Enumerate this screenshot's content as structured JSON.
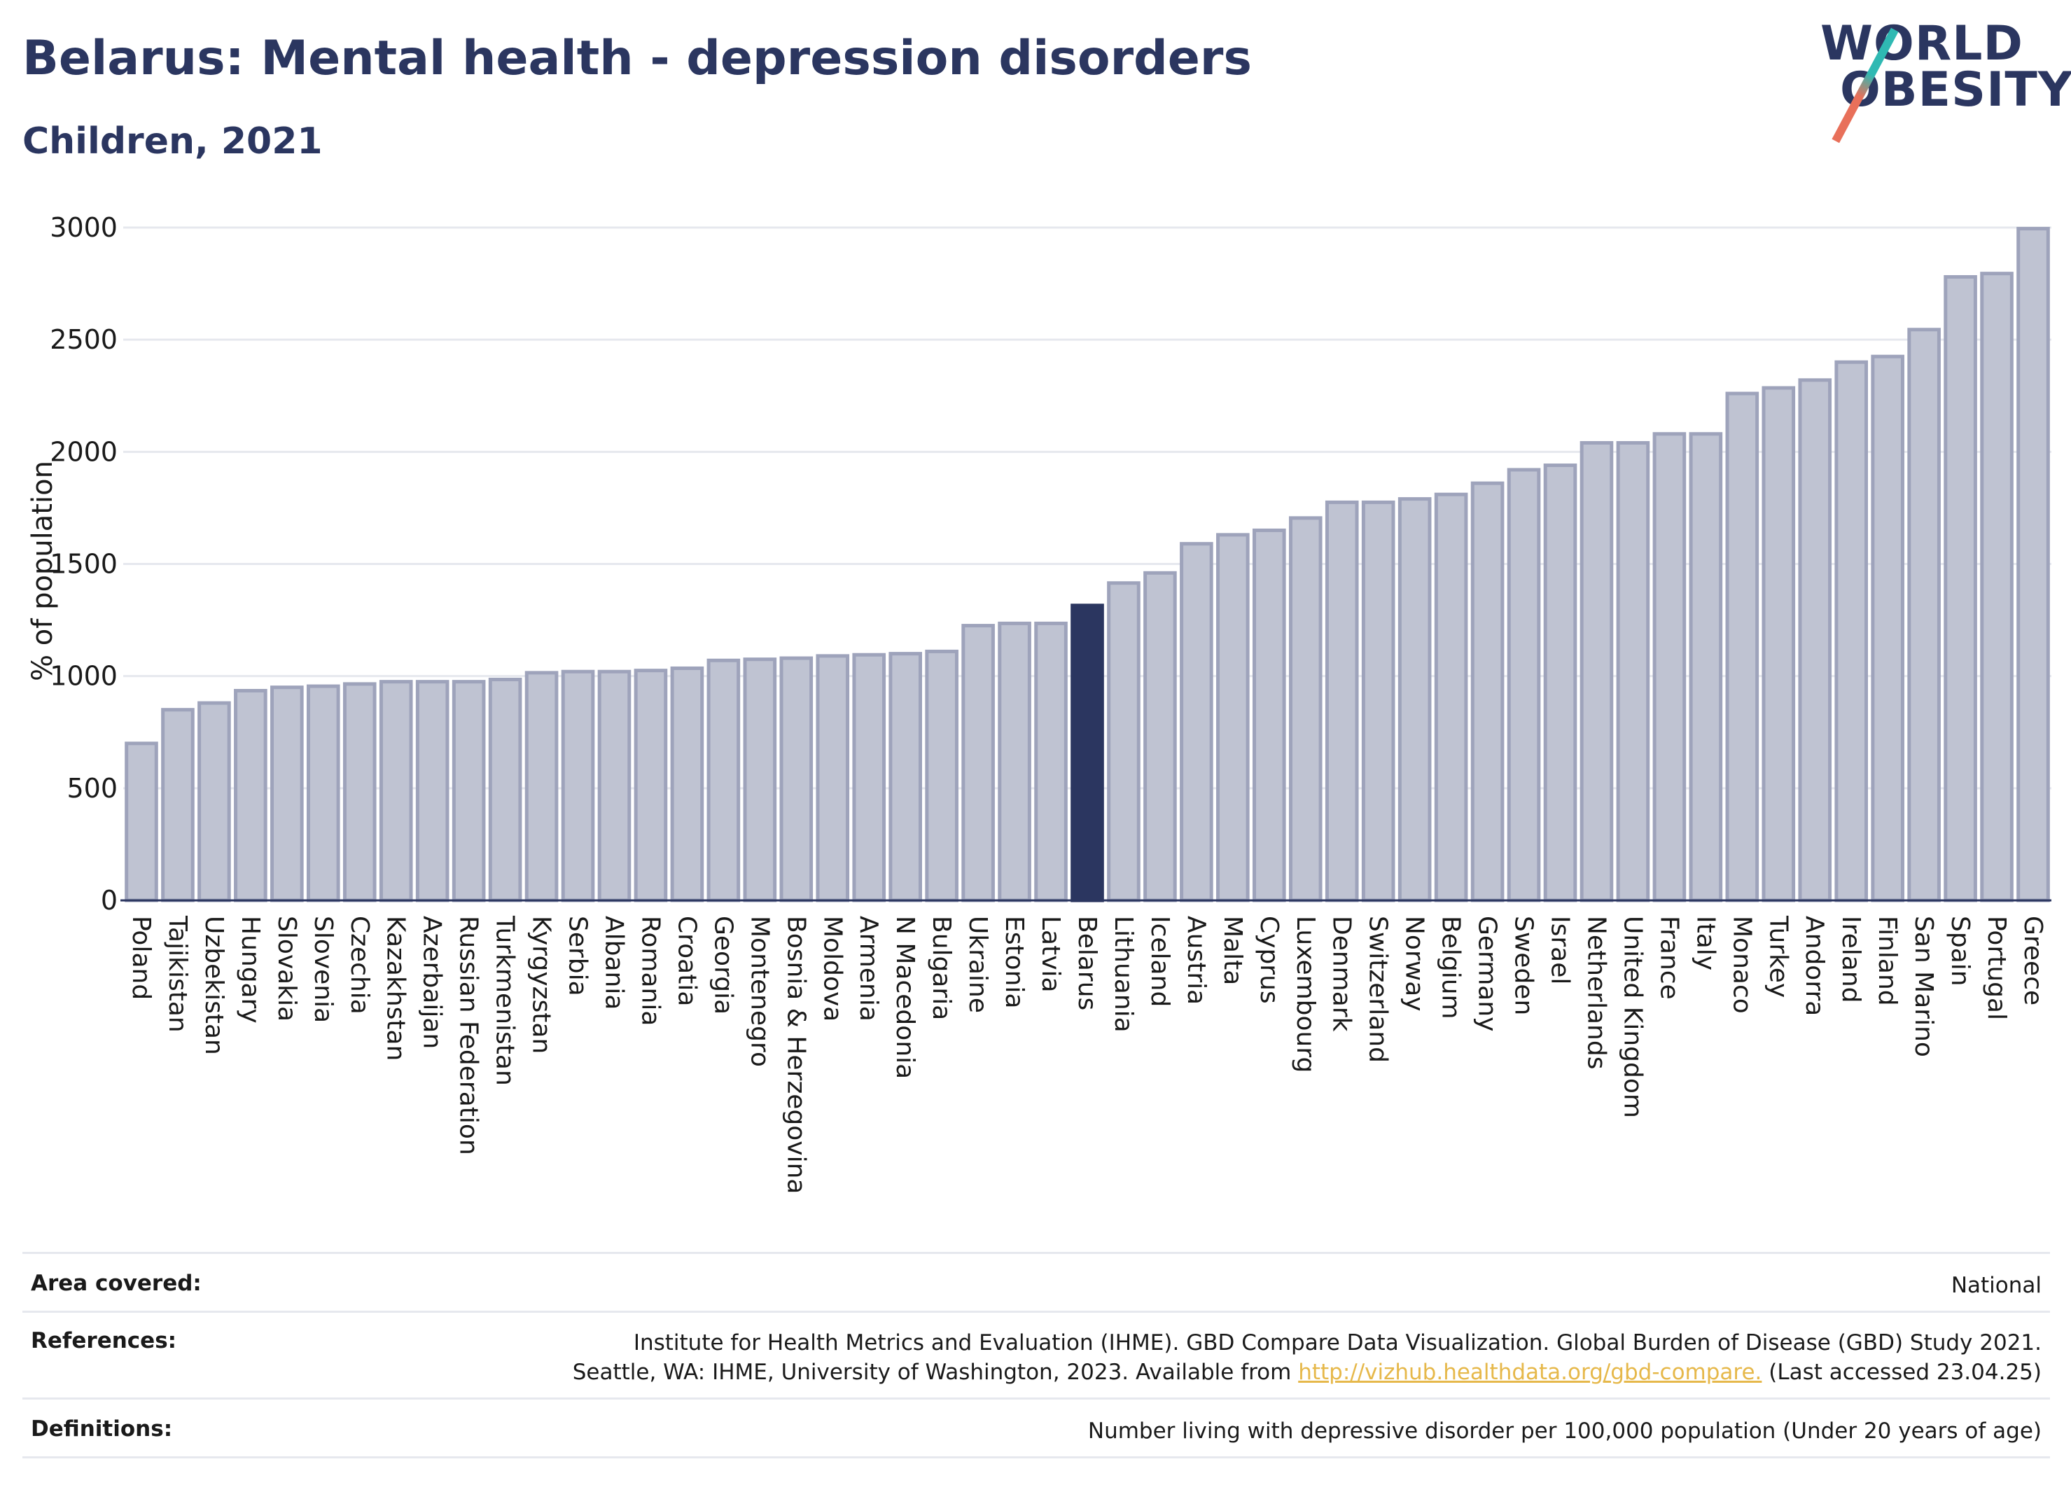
{
  "title": "Belarus: Mental health - depression disorders",
  "subtitle": "Children, 2021",
  "logo": {
    "line1": "WORLD",
    "line2": "OBESITY"
  },
  "colors": {
    "bar": "#bfc3d2",
    "bar_border": "#9ea3bb",
    "highlight": "#2b3660",
    "grid": "#e6e8ee",
    "text": "#2b3660"
  },
  "chart_data": {
    "type": "bar",
    "ylabel": "% of population",
    "ylim": [
      0,
      3000
    ],
    "yticks": [
      0,
      500,
      1000,
      1500,
      2000,
      2500,
      3000
    ],
    "grid": true,
    "highlight": "Belarus",
    "categories": [
      "Poland",
      "Tajikistan",
      "Uzbekistan",
      "Hungary",
      "Slovakia",
      "Slovenia",
      "Czechia",
      "Kazakhstan",
      "Azerbaijan",
      "Russian Federation",
      "Turkmenistan",
      "Kyrgyzstan",
      "Serbia",
      "Albania",
      "Romania",
      "Croatia",
      "Georgia",
      "Montenegro",
      "Bosnia & Herzegovina",
      "Moldova",
      "Armenia",
      "N Macedonia",
      "Bulgaria",
      "Ukraine",
      "Estonia",
      "Latvia",
      "Belarus",
      "Lithuania",
      "Iceland",
      "Austria",
      "Malta",
      "Cyprus",
      "Luxembourg",
      "Denmark",
      "Switzerland",
      "Norway",
      "Belgium",
      "Germany",
      "Sweden",
      "Israel",
      "Netherlands",
      "United Kingdom",
      "France",
      "Italy",
      "Monaco",
      "Turkey",
      "Andorra",
      "Ireland",
      "Finland",
      "San Marino",
      "Spain",
      "Portugal",
      "Greece"
    ],
    "values": [
      700,
      850,
      880,
      935,
      950,
      955,
      965,
      975,
      975,
      975,
      985,
      1015,
      1020,
      1020,
      1025,
      1035,
      1070,
      1075,
      1080,
      1090,
      1095,
      1100,
      1110,
      1225,
      1235,
      1235,
      1315,
      1415,
      1460,
      1590,
      1630,
      1650,
      1705,
      1775,
      1775,
      1790,
      1810,
      1860,
      1920,
      1940,
      2040,
      2040,
      2080,
      2080,
      2260,
      2285,
      2320,
      2400,
      2425,
      2545,
      2780,
      2795,
      2995
    ]
  },
  "info": {
    "area_label": "Area covered:",
    "area_value": "National",
    "references_label": "References:",
    "references_line1": "Institute for Health Metrics and Evaluation (IHME). GBD Compare Data Visualization. Global Burden of Disease (GBD) Study 2021.",
    "references_line2_pre": "Seattle, WA: IHME, University of Washington, 2023. Available from ",
    "references_link": "http://vizhub.healthdata.org/gbd-compare.",
    "references_line2_post": " (Last accessed 23.04.25)",
    "definitions_label": "Definitions:",
    "definitions_value": "Number living with depressive disorder per 100,000 population (Under 20 years of age)"
  }
}
